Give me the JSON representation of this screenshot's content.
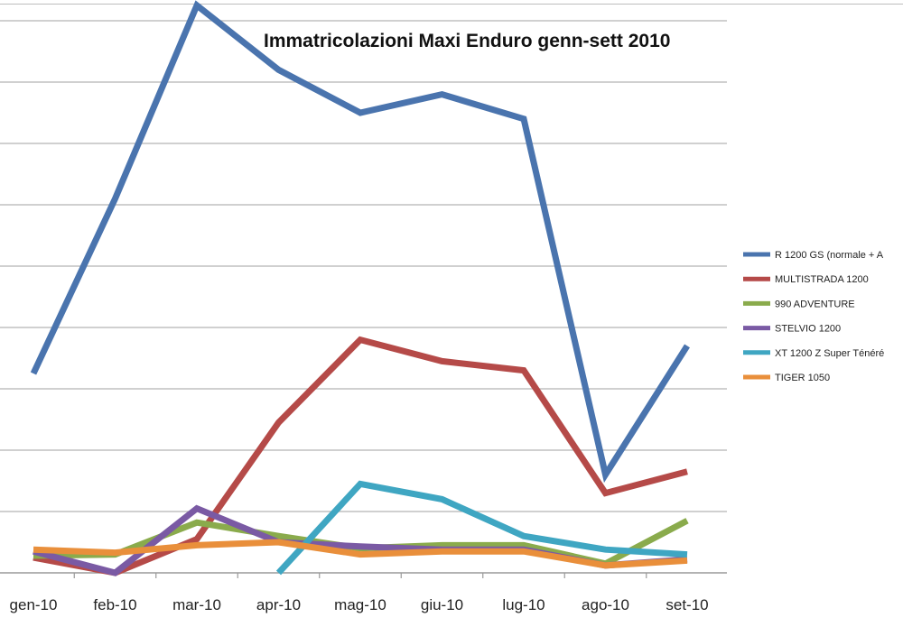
{
  "chart_data": {
    "type": "line",
    "title": "Immatricolazioni Maxi Enduro genn-sett 2010",
    "xlabel": "",
    "ylabel": "",
    "categories": [
      "gen-10",
      "feb-10",
      "mar-10",
      "apr-10",
      "mag-10",
      "giu-10",
      "lug-10",
      "ago-10",
      "set-10"
    ],
    "ylim": [
      0,
      9
    ],
    "grid": true,
    "legend_position": "right",
    "series": [
      {
        "name": "R 1200 GS (normale + A",
        "color": "#4a74ae",
        "values": [
          3.25,
          6.1,
          9.25,
          8.2,
          7.5,
          7.8,
          7.4,
          1.6,
          3.7
        ]
      },
      {
        "name": "MULTISTRADA  1200",
        "color": "#b54a48",
        "values": [
          0.25,
          0.0,
          0.55,
          2.45,
          3.8,
          3.45,
          3.3,
          1.3,
          1.65
        ]
      },
      {
        "name": "990 ADVENTURE",
        "color": "#8aab4c",
        "values": [
          0.28,
          0.3,
          0.82,
          0.6,
          0.4,
          0.45,
          0.45,
          0.15,
          0.85
        ]
      },
      {
        "name": "STELVIO  1200",
        "color": "#7a5aa4",
        "values": [
          0.35,
          0.0,
          1.05,
          0.5,
          0.43,
          0.38,
          0.38,
          0.12,
          0.22
        ]
      },
      {
        "name": "XT 1200 Z Super Ténéré",
        "color": "#3fa6c2",
        "values": [
          null,
          null,
          null,
          0.0,
          1.45,
          1.2,
          0.6,
          0.38,
          0.3
        ]
      },
      {
        "name": "TIGER  1050",
        "color": "#e98f3b",
        "values": [
          0.38,
          0.33,
          0.45,
          0.5,
          0.3,
          0.35,
          0.35,
          0.12,
          0.2
        ]
      }
    ]
  }
}
